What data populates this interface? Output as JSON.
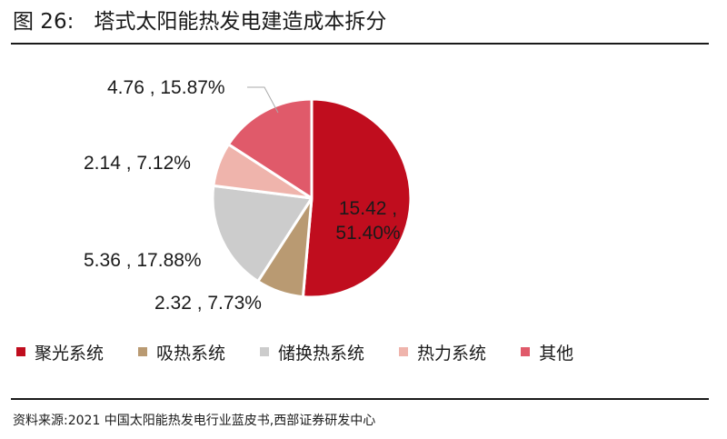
{
  "figure": {
    "label": "图 26:",
    "title": "塔式太阳能热发电建造成本拆分"
  },
  "source": "资料来源:2021 中国太阳能热发电行业蓝皮书,西部证券研发中心",
  "chart_data": {
    "type": "pie",
    "title": "",
    "categories": [
      "聚光系统",
      "吸热系统",
      "储换热系统",
      "热力系统",
      "其他"
    ],
    "values": [
      15.42,
      2.32,
      5.36,
      2.14,
      4.76
    ],
    "percentages": [
      "51.40%",
      "7.73%",
      "17.88%",
      "7.12%",
      "15.87%"
    ],
    "data_labels": [
      "15.42 , 51.40%",
      "2.32 , 7.73%",
      "5.36 , 17.88%",
      "2.14 , 7.12%",
      "4.76 , 15.87%"
    ],
    "colors": [
      "#c00d1e",
      "#b99a72",
      "#cccccc",
      "#efb4ac",
      "#e05a6a"
    ],
    "legend_position": "bottom"
  }
}
